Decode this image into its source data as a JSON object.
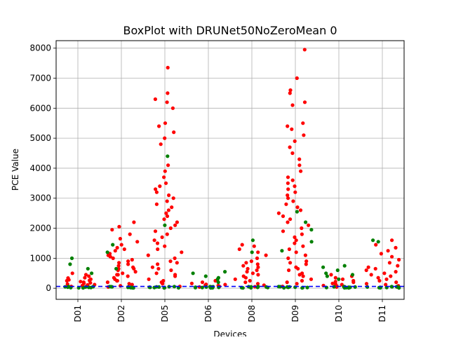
{
  "chart_data": {
    "type": "scatter",
    "title": "BoxPlot with DRUNet50NoZeroMean 0",
    "xlabel": "Devices",
    "ylabel": "PCE Value",
    "categories": [
      "D01",
      "D02",
      "D05",
      "D06",
      "D08",
      "D09",
      "D10",
      "D11"
    ],
    "yticks": [
      0,
      1000,
      2000,
      3000,
      4000,
      5000,
      6000,
      7000,
      8000
    ],
    "ylim": [
      -370,
      8250
    ],
    "grid": true,
    "threshold_line": {
      "value": 60,
      "color": "#0000ff",
      "style": "dashed"
    },
    "colors": {
      "above": "#ff0000",
      "below": "#008000"
    },
    "series": [
      {
        "name": "",
        "color": "#ff0000",
        "values": [
          [
            30,
            60,
            90,
            120,
            160,
            200,
            250,
            300,
            350,
            400,
            450,
            500,
            80,
            140,
            220,
            280,
            340,
            110,
            180,
            260
          ],
          [
            40,
            80,
            150,
            250,
            350,
            450,
            550,
            650,
            750,
            850,
            950,
            1050,
            1150,
            1250,
            1350,
            1450,
            1550,
            1650,
            1800,
            1950,
            2050,
            2200,
            120,
            300,
            500,
            700,
            900,
            1100,
            1300,
            200,
            400,
            600,
            800,
            1000,
            250,
            450,
            650
          ],
          [
            60,
            150,
            300,
            500,
            700,
            900,
            1100,
            1300,
            1500,
            1700,
            1900,
            2100,
            2300,
            2500,
            2700,
            2900,
            3100,
            3300,
            3500,
            3700,
            3900,
            4100,
            4800,
            5000,
            5200,
            5400,
            5500,
            6000,
            6200,
            6300,
            6500,
            7350,
            200,
            400,
            600,
            800,
            1000,
            1200,
            1400,
            1600,
            1800,
            2000,
            2200,
            2400,
            2600,
            2800,
            3000,
            3200,
            3400,
            250,
            450,
            650,
            850
          ],
          [
            40,
            70,
            100,
            130,
            160,
            200,
            250,
            60,
            90,
            120
          ],
          [
            50,
            100,
            200,
            300,
            400,
            500,
            600,
            700,
            800,
            900,
            1000,
            1100,
            1200,
            1300,
            1400,
            1450,
            150,
            250,
            350,
            450,
            550,
            650,
            750,
            850
          ],
          [
            60,
            150,
            300,
            500,
            700,
            900,
            1100,
            1300,
            1500,
            1700,
            1900,
            2100,
            2300,
            2500,
            2700,
            2900,
            3100,
            3300,
            3500,
            3700,
            3900,
            4100,
            4300,
            4500,
            4700,
            4900,
            5100,
            5300,
            5400,
            5500,
            6100,
            6200,
            6500,
            6600,
            7000,
            7950,
            200,
            400,
            600,
            800,
            1000,
            1200,
            1400,
            1600,
            1800,
            2000,
            2200,
            2400,
            2600,
            2800,
            3000,
            3200,
            3400,
            3600,
            250,
            450,
            650,
            850
          ],
          [
            40,
            80,
            120,
            160,
            200,
            250,
            300,
            350,
            400,
            450,
            90,
            140,
            220
          ],
          [
            40,
            80,
            150,
            250,
            350,
            450,
            550,
            650,
            750,
            850,
            950,
            1050,
            1150,
            1250,
            1350,
            1450,
            1600,
            120,
            300,
            500,
            700,
            200,
            400,
            600
          ]
        ]
      },
      {
        "name": "",
        "color": "#008000",
        "values": [
          [
            10,
            20,
            30,
            40,
            50,
            15,
            25,
            35,
            45,
            55,
            500,
            650,
            800,
            1000
          ],
          [
            10,
            20,
            30,
            40,
            50,
            15,
            25,
            35,
            45,
            55,
            1200,
            1450,
            650
          ],
          [
            10,
            20,
            30,
            40,
            50,
            15,
            25,
            35,
            45,
            55,
            2100,
            4400
          ],
          [
            10,
            20,
            30,
            40,
            50,
            15,
            25,
            35,
            45,
            55,
            300,
            400,
            500,
            550,
            200,
            350
          ],
          [
            10,
            20,
            30,
            40,
            50,
            15,
            25,
            35,
            45,
            55,
            1600,
            1200
          ],
          [
            10,
            20,
            30,
            40,
            50,
            15,
            25,
            35,
            45,
            55,
            1250,
            1550,
            2200,
            2550,
            1950
          ],
          [
            10,
            20,
            30,
            40,
            50,
            15,
            25,
            35,
            45,
            55,
            300,
            450,
            600,
            700,
            750,
            500,
            400
          ],
          [
            10,
            20,
            30,
            40,
            50,
            15,
            25,
            35,
            45,
            55,
            1550,
            1600
          ]
        ]
      }
    ]
  }
}
